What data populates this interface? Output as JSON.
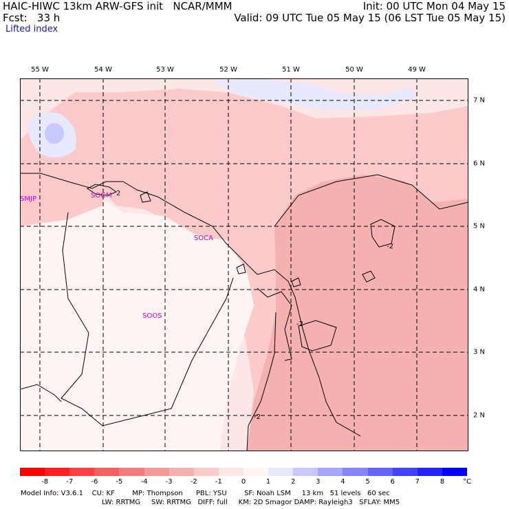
{
  "header": {
    "title": "HAIC-HIWC 13km ARW-GFS init   NCAR/MMM",
    "fcst": "Fcst:   33 h",
    "init": "Init: 00 UTC Mon 04 May 15",
    "valid": "Valid: 09 UTC Tue 05 May 15 (06 LST Tue 05 May 15)",
    "field": "Lifted index"
  },
  "lon_labels": [
    "55 W",
    "54 W",
    "53 W",
    "52 W",
    "51 W",
    "50 W",
    "49 W"
  ],
  "lat_labels": [
    "7 N",
    "6 N",
    "5 N",
    "4 N",
    "3 N",
    "2 N"
  ],
  "stations": [
    "SMJP",
    "SOGM",
    "SOCA",
    "SOOS"
  ],
  "contour_labels": [
    "2",
    "-2",
    "-2",
    "-2"
  ],
  "colorbar": {
    "colors": [
      "#ff0000",
      "#ff2020",
      "#ff4040",
      "#f55f5f",
      "#f57a7a",
      "#f59a9a",
      "#f5b0b0",
      "#fccaca",
      "#fde6e6",
      "#fff5f5",
      "#e8e8ff",
      "#c8c8ff",
      "#a6a6ff",
      "#8585ff",
      "#6464ff",
      "#4242ff",
      "#2222ff",
      "#0000ff"
    ],
    "ticks": [
      "-8",
      "-7",
      "-6",
      "-5",
      "-4",
      "-3",
      "-2",
      "-1",
      "0",
      "1",
      "2",
      "3",
      "4",
      "5",
      "6",
      "7",
      "8"
    ],
    "unit": "°C"
  },
  "footer": {
    "line1": "Model Info: V3.6.1    CU: KF        MP: Thompson      PBL: YSU        SF: Noah LSM     13 km   51 levels   60 sec",
    "line2": "LW: RRTMG     SW: RRTMG   DIFF: full     KM: 2D Smagor DAMP: Rayleigh3   SFLAY: MM5"
  }
}
